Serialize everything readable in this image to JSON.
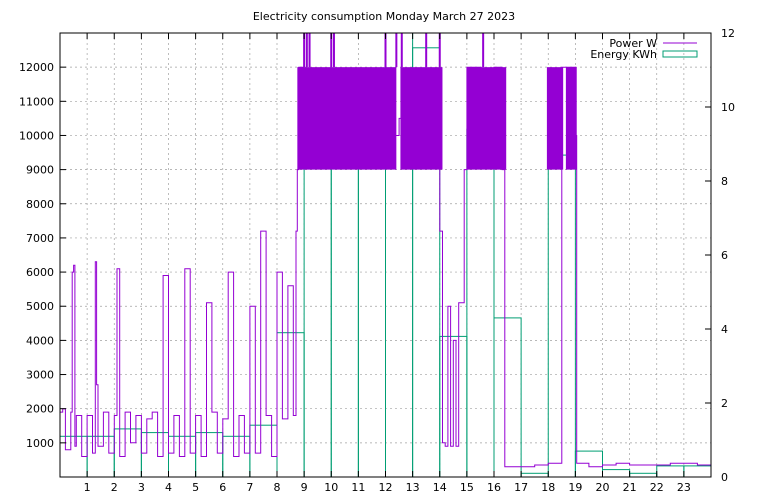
{
  "chart_data": {
    "type": "bar+line",
    "title": "Electricity consumption Monday March 27 2023",
    "legend": {
      "placement": "top-right",
      "entries": [
        "Power W",
        "Energy KWh"
      ]
    },
    "x_ticks": [
      "1",
      "2",
      "3",
      "4",
      "5",
      "6",
      "7",
      "8",
      "9",
      "10",
      "11",
      "12",
      "13",
      "14",
      "15",
      "16",
      "17",
      "18",
      "19",
      "20",
      "21",
      "22",
      "23"
    ],
    "xlim": [
      0,
      24
    ],
    "y_left": {
      "ylim": [
        0,
        13000
      ],
      "ticks": [
        "1000",
        "2000",
        "3000",
        "4000",
        "5000",
        "6000",
        "7000",
        "8000",
        "9000",
        "10000",
        "11000",
        "12000"
      ]
    },
    "y_right": {
      "ylim": [
        0,
        12
      ],
      "ticks": [
        "0",
        "2",
        "4",
        "6",
        "8",
        "10",
        "12"
      ]
    },
    "grid": true,
    "series": [
      {
        "name": "Energy KWh",
        "type": "bar",
        "axis": "right",
        "color": "#009e73",
        "x_hours": [
          0,
          1,
          2,
          3,
          4,
          5,
          6,
          7,
          8,
          9,
          10,
          11,
          12,
          13,
          14,
          15,
          16,
          17,
          18,
          19,
          20,
          21,
          22,
          23
        ],
        "values": [
          1.1,
          1.1,
          1.3,
          1.2,
          1.1,
          1.2,
          1.1,
          1.4,
          3.9,
          10.6,
          10.9,
          10.5,
          12.5,
          11.6,
          3.8,
          9.4,
          4.3,
          0.1,
          8.7,
          0.7,
          0.2,
          0.1,
          0.3,
          0.3
        ]
      },
      {
        "name": "Power W",
        "type": "line",
        "axis": "left",
        "color": "#9400d3",
        "description": "idle cycling 500-2000 W with spikes to ~6000 W until 8:45, then rapid cycling 9000-12000 W (peaks above 13000) until 16:30, low ~300-400 W afterwards with heavy bursts at 18:00-19:00",
        "x": [
          0,
          0.1,
          0.2,
          0.4,
          0.45,
          0.5,
          0.55,
          0.6,
          0.8,
          1.0,
          1.2,
          1.3,
          1.35,
          1.4,
          1.6,
          1.8,
          2.0,
          2.1,
          2.2,
          2.4,
          2.6,
          2.8,
          3.0,
          3.2,
          3.4,
          3.6,
          3.8,
          4.0,
          4.2,
          4.4,
          4.6,
          4.8,
          5.0,
          5.2,
          5.4,
          5.6,
          5.8,
          6.0,
          6.2,
          6.4,
          6.6,
          6.8,
          7.0,
          7.2,
          7.4,
          7.6,
          7.8,
          8.0,
          8.2,
          8.4,
          8.6,
          8.7,
          8.75,
          8.8,
          9.0,
          9.5,
          10.0,
          10.5,
          11.0,
          11.5,
          12.0,
          12.5,
          13.0,
          13.5,
          14.0,
          14.1,
          14.2,
          14.3,
          14.4,
          14.5,
          14.6,
          14.7,
          14.8,
          14.9,
          15.0,
          15.5,
          16.0,
          16.3,
          16.4,
          16.5,
          17.0,
          17.5,
          18.0,
          18.1,
          18.5,
          19.0,
          19.05,
          19.5,
          20.0,
          20.5,
          21.0,
          21.5,
          22.0,
          22.5,
          23.0,
          23.5,
          24.0
        ],
        "y": [
          1900,
          2000,
          800,
          1900,
          6000,
          6200,
          900,
          1800,
          600,
          1800,
          700,
          6300,
          2700,
          900,
          1900,
          700,
          1800,
          6100,
          600,
          1900,
          1000,
          1800,
          700,
          1700,
          1900,
          600,
          5900,
          700,
          1800,
          600,
          6100,
          700,
          1800,
          600,
          5100,
          1900,
          700,
          1700,
          6000,
          600,
          1800,
          700,
          5000,
          700,
          7200,
          1800,
          600,
          6000,
          1700,
          5600,
          1800,
          7200,
          9000,
          12000,
          11000,
          10500,
          11000,
          10000,
          10000,
          10500,
          10000,
          10500,
          11000,
          10000,
          7200,
          1000,
          900,
          5000,
          900,
          4000,
          900,
          5100,
          5100,
          9000,
          12000,
          11000,
          12000,
          9000,
          300,
          300,
          300,
          350,
          400,
          400,
          12000,
          10000,
          400,
          300,
          350,
          400,
          350,
          350,
          350,
          400,
          400,
          350,
          350
        ]
      }
    ]
  }
}
